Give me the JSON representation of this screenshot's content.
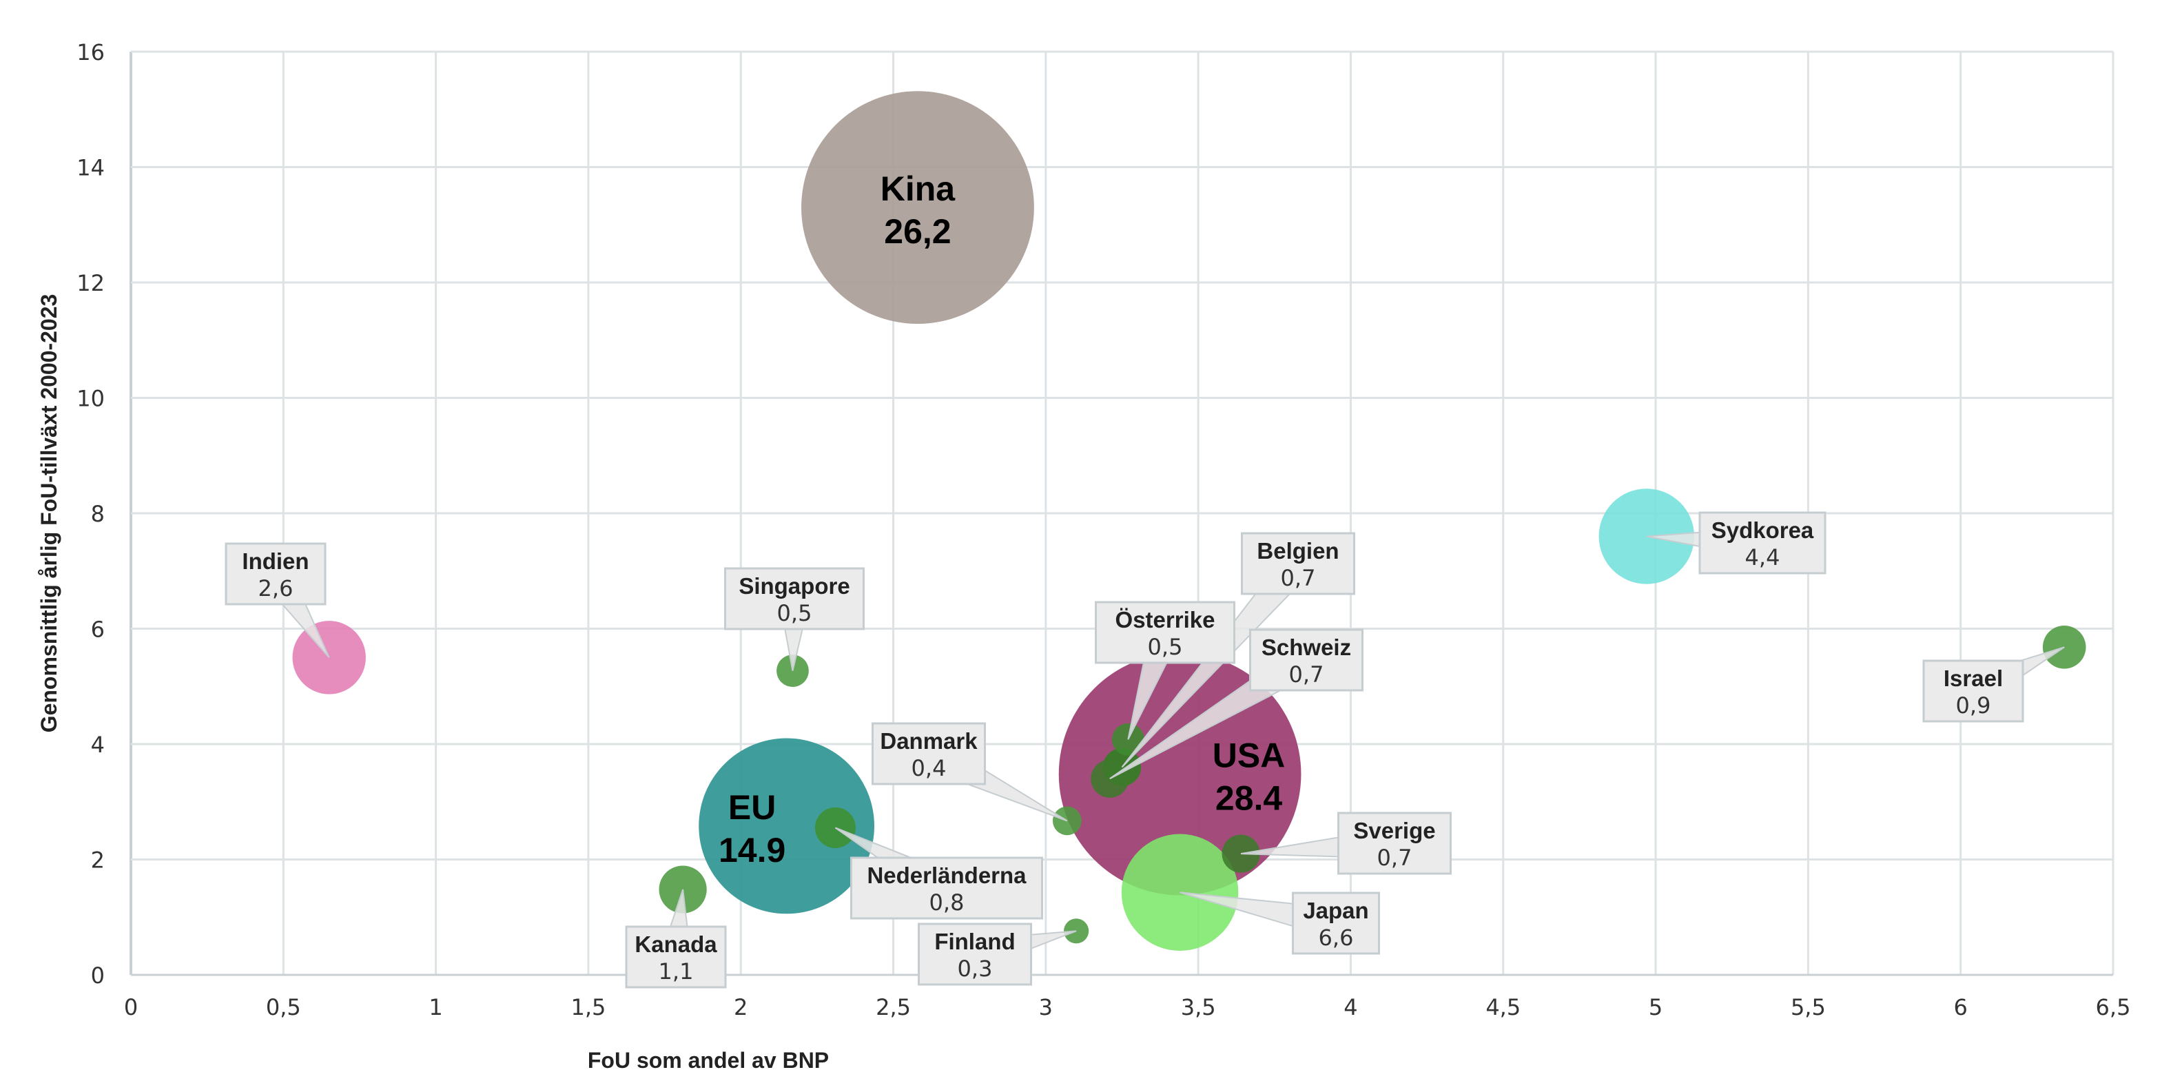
{
  "chart_data": {
    "type": "bubble",
    "title": "",
    "xlabel": "FoU som andel av BNP",
    "ylabel": "Genomsnittlig årlig FoU-tillväxt 2000-2023",
    "xlim": [
      0,
      6.5
    ],
    "ylim": [
      0,
      16
    ],
    "x_ticks": [
      "0",
      "0,5",
      "1",
      "1,5",
      "2",
      "2,5",
      "3",
      "3,5",
      "4",
      "4,5",
      "5",
      "5,5",
      "6",
      "6,5"
    ],
    "y_ticks": [
      "0",
      "2",
      "4",
      "6",
      "8",
      "10",
      "12",
      "14",
      "16"
    ],
    "grid": true,
    "points": [
      {
        "name": "Kina",
        "size_label": "26,2",
        "x": 2.58,
        "y": 13.3,
        "size": 26.2,
        "color": "#a99d97",
        "style": "inside"
      },
      {
        "name": "USA",
        "size_label": "28.4",
        "x": 3.44,
        "y": 3.48,
        "size": 28.4,
        "color": "#9b3d70",
        "style": "inside"
      },
      {
        "name": "EU",
        "size_label": "14.9",
        "x": 2.15,
        "y": 2.58,
        "size": 14.9,
        "color": "#2f9693",
        "style": "inside"
      },
      {
        "name": "Japan",
        "size_label": "6,6",
        "x": 3.44,
        "y": 1.43,
        "size": 6.6,
        "color": "#7de86b",
        "style": "callout"
      },
      {
        "name": "Sydkorea",
        "size_label": "4,4",
        "x": 4.97,
        "y": 7.6,
        "size": 4.4,
        "color": "#73e0dc",
        "style": "callout"
      },
      {
        "name": "Indien",
        "size_label": "2,6",
        "x": 0.65,
        "y": 5.5,
        "size": 2.6,
        "color": "#e47db5",
        "style": "callout"
      },
      {
        "name": "Kanada",
        "size_label": "1,1",
        "x": 1.81,
        "y": 1.48,
        "size": 1.1,
        "color": "#4f9a40",
        "style": "callout"
      },
      {
        "name": "Israel",
        "size_label": "0,9",
        "x": 6.34,
        "y": 5.68,
        "size": 0.9,
        "color": "#4f9a40",
        "style": "callout"
      },
      {
        "name": "Nederländerna",
        "size_label": "0,8",
        "x": 2.31,
        "y": 2.55,
        "size": 0.8,
        "color": "#3f8f30",
        "style": "callout"
      },
      {
        "name": "Belgien",
        "size_label": "0,7",
        "x": 3.25,
        "y": 3.6,
        "size": 0.7,
        "color": "#2f7f20",
        "style": "callout"
      },
      {
        "name": "Schweiz",
        "size_label": "0,7",
        "x": 3.21,
        "y": 3.4,
        "size": 0.7,
        "color": "#3d7a2c",
        "style": "callout"
      },
      {
        "name": "Sverige",
        "size_label": "0,7",
        "x": 3.64,
        "y": 2.1,
        "size": 0.7,
        "color": "#3d7a2c",
        "style": "callout"
      },
      {
        "name": "Österrike",
        "size_label": "0,5",
        "x": 3.27,
        "y": 4.08,
        "size": 0.5,
        "color": "#3f8a30",
        "style": "callout"
      },
      {
        "name": "Singapore",
        "size_label": "0,5",
        "x": 2.17,
        "y": 5.27,
        "size": 0.5,
        "color": "#4f9a40",
        "style": "callout"
      },
      {
        "name": "Danmark",
        "size_label": "0,4",
        "x": 3.07,
        "y": 2.67,
        "size": 0.4,
        "color": "#4f9a40",
        "style": "callout"
      },
      {
        "name": "Finland",
        "size_label": "0,3",
        "x": 3.1,
        "y": 0.76,
        "size": 0.3,
        "color": "#4f9a40",
        "style": "callout"
      }
    ]
  }
}
